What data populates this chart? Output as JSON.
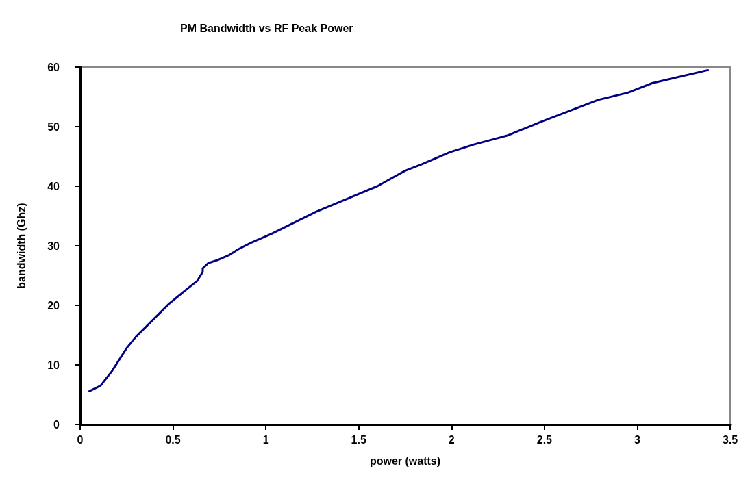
{
  "chart_data": {
    "type": "line",
    "title": "PM Bandwidth vs RF Peak Power",
    "xlabel": "power (watts)",
    "ylabel": "bandwidth (Ghz)",
    "xlim": [
      0,
      3.5
    ],
    "xticks": [
      0,
      0.5,
      1,
      1.5,
      2,
      2.5,
      3,
      3.5
    ],
    "ylim": [
      0,
      60
    ],
    "yticks": [
      0,
      10,
      20,
      30,
      40,
      50,
      60
    ],
    "grid": false,
    "marker": "none",
    "line_style": "solid",
    "series": [
      {
        "color": "#000080",
        "x": [
          0.05,
          0.11,
          0.17,
          0.25,
          0.3,
          0.48,
          0.57,
          0.63,
          0.66,
          0.66,
          0.69,
          0.74,
          0.8,
          0.85,
          0.92,
          1.03,
          1.27,
          1.6,
          1.75,
          1.84,
          1.99,
          2.12,
          2.24,
          2.3,
          2.48,
          2.79,
          2.95,
          3.08,
          3.38
        ],
        "values": [
          5.6,
          6.5,
          8.9,
          12.8,
          14.7,
          20.3,
          22.6,
          24.1,
          25.6,
          26.2,
          27.1,
          27.6,
          28.4,
          29.4,
          30.5,
          32.0,
          35.7,
          40.0,
          42.6,
          43.7,
          45.7,
          47.0,
          48.0,
          48.5,
          50.8,
          54.5,
          55.7,
          57.3,
          59.5
        ]
      }
    ]
  }
}
